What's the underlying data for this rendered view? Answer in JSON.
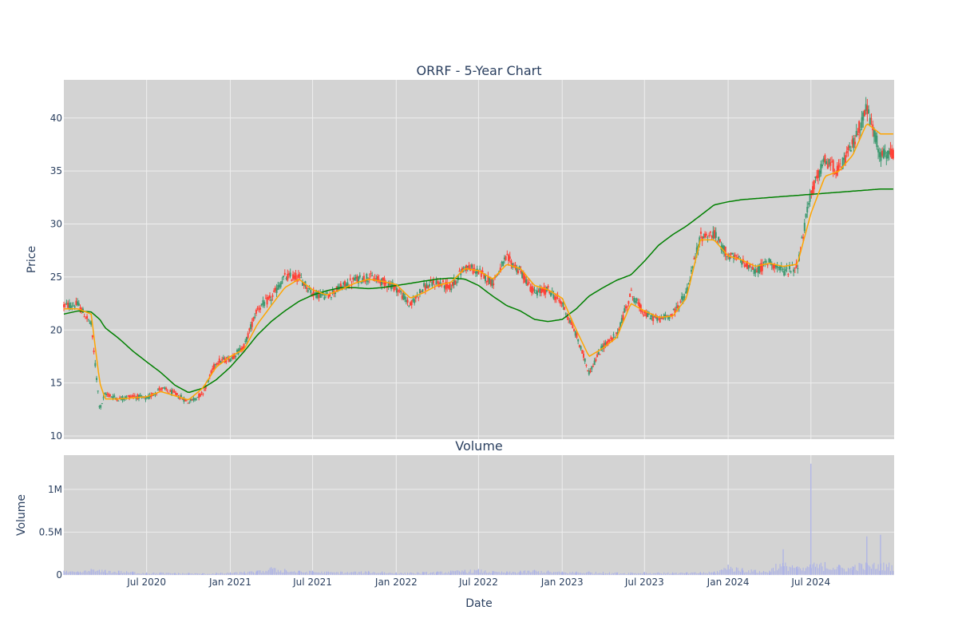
{
  "chart_data": [
    {
      "type": "candlestick",
      "title": "ORRF - 5-Year Chart",
      "xlabel": "",
      "ylabel": "Price",
      "ylim": [
        9.7,
        43.6
      ],
      "yticks": [
        10,
        15,
        20,
        25,
        30,
        35,
        40
      ],
      "xticks": [
        "Jul 2020",
        "Jan 2021",
        "Jul 2021",
        "Jan 2022",
        "Jul 2022",
        "Jan 2023",
        "Jul 2023",
        "Jan 2024",
        "Jul 2024"
      ],
      "grid": true,
      "legend": "none",
      "colors": {
        "background": "#d3d3d3",
        "up": "#3d9970",
        "down": "#ff4136",
        "short_ma": "#ffa500",
        "long_ma": "#008000",
        "grid": "#eeeeee"
      },
      "x": [
        "2020-01-01",
        "2020-02-01",
        "2020-03-01",
        "2020-03-20",
        "2020-04-01",
        "2020-05-01",
        "2020-06-01",
        "2020-07-01",
        "2020-08-01",
        "2020-09-01",
        "2020-10-01",
        "2020-11-01",
        "2020-12-01",
        "2021-01-01",
        "2021-02-01",
        "2021-03-01",
        "2021-04-01",
        "2021-05-01",
        "2021-06-01",
        "2021-07-01",
        "2021-08-01",
        "2021-09-01",
        "2021-10-01",
        "2021-11-01",
        "2021-12-01",
        "2022-01-01",
        "2022-02-01",
        "2022-03-01",
        "2022-04-01",
        "2022-05-01",
        "2022-06-01",
        "2022-07-01",
        "2022-08-01",
        "2022-09-01",
        "2022-10-01",
        "2022-11-01",
        "2022-12-01",
        "2023-01-01",
        "2023-02-01",
        "2023-03-01",
        "2023-04-01",
        "2023-05-01",
        "2023-06-01",
        "2023-07-01",
        "2023-08-01",
        "2023-09-01",
        "2023-10-01",
        "2023-11-01",
        "2023-12-01",
        "2024-01-01",
        "2024-02-01",
        "2024-03-01",
        "2024-04-01",
        "2024-05-01",
        "2024-06-01",
        "2024-07-01",
        "2024-08-01",
        "2024-09-01",
        "2024-10-01",
        "2024-11-01",
        "2024-12-01"
      ],
      "price_path": [
        22.3,
        22.4,
        20.5,
        12.5,
        14.0,
        13.5,
        13.8,
        13.5,
        14.5,
        14.0,
        13.2,
        14.0,
        17.0,
        17.3,
        18.5,
        22.0,
        23.0,
        25.0,
        25.0,
        23.5,
        23.2,
        24.0,
        24.7,
        25.0,
        24.6,
        24.0,
        22.3,
        24.0,
        24.5,
        24.0,
        26.0,
        25.5,
        24.5,
        26.8,
        25.5,
        23.5,
        23.8,
        22.5,
        19.5,
        16.0,
        18.5,
        19.5,
        23.5,
        21.5,
        21.0,
        21.5,
        23.5,
        28.8,
        29.0,
        27.0,
        26.5,
        25.5,
        26.5,
        25.5,
        26.0,
        33.0,
        36.0,
        35.0,
        37.5,
        41.0,
        36.5
      ],
      "short_ma": [
        22.0,
        22.0,
        21.5,
        15.0,
        13.5,
        13.5,
        13.6,
        13.7,
        14.2,
        13.8,
        13.4,
        14.5,
        16.5,
        17.5,
        18.2,
        20.5,
        22.3,
        24.0,
        24.8,
        23.8,
        23.3,
        23.8,
        24.4,
        24.8,
        24.6,
        24.3,
        23.0,
        23.5,
        24.2,
        24.5,
        25.8,
        25.6,
        24.8,
        26.2,
        25.8,
        24.2,
        23.8,
        23.0,
        20.0,
        17.5,
        18.3,
        19.3,
        22.5,
        21.8,
        21.2,
        21.3,
        23.0,
        28.5,
        28.5,
        27.0,
        26.6,
        26.0,
        26.3,
        26.0,
        26.2,
        31.0,
        34.5,
        35.0,
        36.5,
        39.5,
        38.5
      ],
      "long_ma": [
        21.5,
        21.8,
        21.7,
        21.0,
        20.2,
        19.2,
        18.0,
        17.0,
        16.0,
        14.8,
        14.1,
        14.5,
        15.3,
        16.5,
        18.0,
        19.5,
        20.8,
        21.8,
        22.7,
        23.3,
        23.7,
        24.0,
        24.0,
        23.9,
        24.0,
        24.2,
        24.4,
        24.6,
        24.8,
        24.9,
        24.8,
        24.2,
        23.2,
        22.3,
        21.8,
        21.0,
        20.8,
        21.0,
        22.0,
        23.2,
        24.0,
        24.7,
        25.2,
        26.5,
        28.0,
        29.0,
        29.8,
        30.8,
        31.8,
        32.1,
        32.3,
        32.4,
        32.5,
        32.6,
        32.7,
        32.8,
        32.9,
        33.0,
        33.1,
        33.2,
        33.3
      ]
    },
    {
      "type": "bar",
      "title": "Volume",
      "xlabel": "Date",
      "ylabel": "Volume",
      "ylim": [
        0,
        1400000
      ],
      "yticks": [
        "0",
        "0.5M",
        "1M"
      ],
      "xticks": [
        "Jul 2020",
        "Jan 2021",
        "Jul 2021",
        "Jan 2022",
        "Jul 2022",
        "Jan 2023",
        "Jul 2023",
        "Jan 2024",
        "Jul 2024"
      ],
      "grid": true,
      "colors": {
        "bar": "#aab0e8"
      },
      "x": [
        "2020-01-01",
        "2020-02-01",
        "2020-03-01",
        "2020-04-01",
        "2020-05-01",
        "2020-06-01",
        "2020-07-01",
        "2020-08-01",
        "2020-09-01",
        "2020-10-01",
        "2020-11-01",
        "2020-12-01",
        "2021-01-01",
        "2021-02-01",
        "2021-03-01",
        "2021-04-01",
        "2021-05-01",
        "2021-06-01",
        "2021-07-01",
        "2021-08-01",
        "2021-09-01",
        "2021-10-01",
        "2021-11-01",
        "2021-12-01",
        "2022-01-01",
        "2022-02-01",
        "2022-03-01",
        "2022-04-01",
        "2022-05-01",
        "2022-06-01",
        "2022-07-01",
        "2022-08-01",
        "2022-09-01",
        "2022-10-01",
        "2022-11-01",
        "2022-12-01",
        "2023-01-01",
        "2023-02-01",
        "2023-03-01",
        "2023-04-01",
        "2023-05-01",
        "2023-06-01",
        "2023-07-01",
        "2023-08-01",
        "2023-09-01",
        "2023-10-01",
        "2023-11-01",
        "2023-12-01",
        "2024-01-01",
        "2024-02-01",
        "2024-03-01",
        "2024-04-01",
        "2024-05-01",
        "2024-06-01",
        "2024-06-20",
        "2024-07-01",
        "2024-08-01",
        "2024-09-01",
        "2024-10-01",
        "2024-11-01",
        "2024-12-01"
      ],
      "values": [
        50000,
        40000,
        70000,
        60000,
        50000,
        40000,
        30000,
        30000,
        25000,
        25000,
        20000,
        25000,
        30000,
        40000,
        50000,
        90000,
        70000,
        50000,
        50000,
        40000,
        40000,
        40000,
        45000,
        40000,
        30000,
        30000,
        35000,
        40000,
        50000,
        60000,
        70000,
        45000,
        40000,
        50000,
        60000,
        50000,
        40000,
        40000,
        40000,
        35000,
        30000,
        30000,
        35000,
        30000,
        30000,
        30000,
        35000,
        40000,
        120000,
        80000,
        60000,
        50000,
        300000,
        100000,
        80000,
        1300000,
        150000,
        120000,
        100000,
        450000,
        470000
      ]
    }
  ]
}
